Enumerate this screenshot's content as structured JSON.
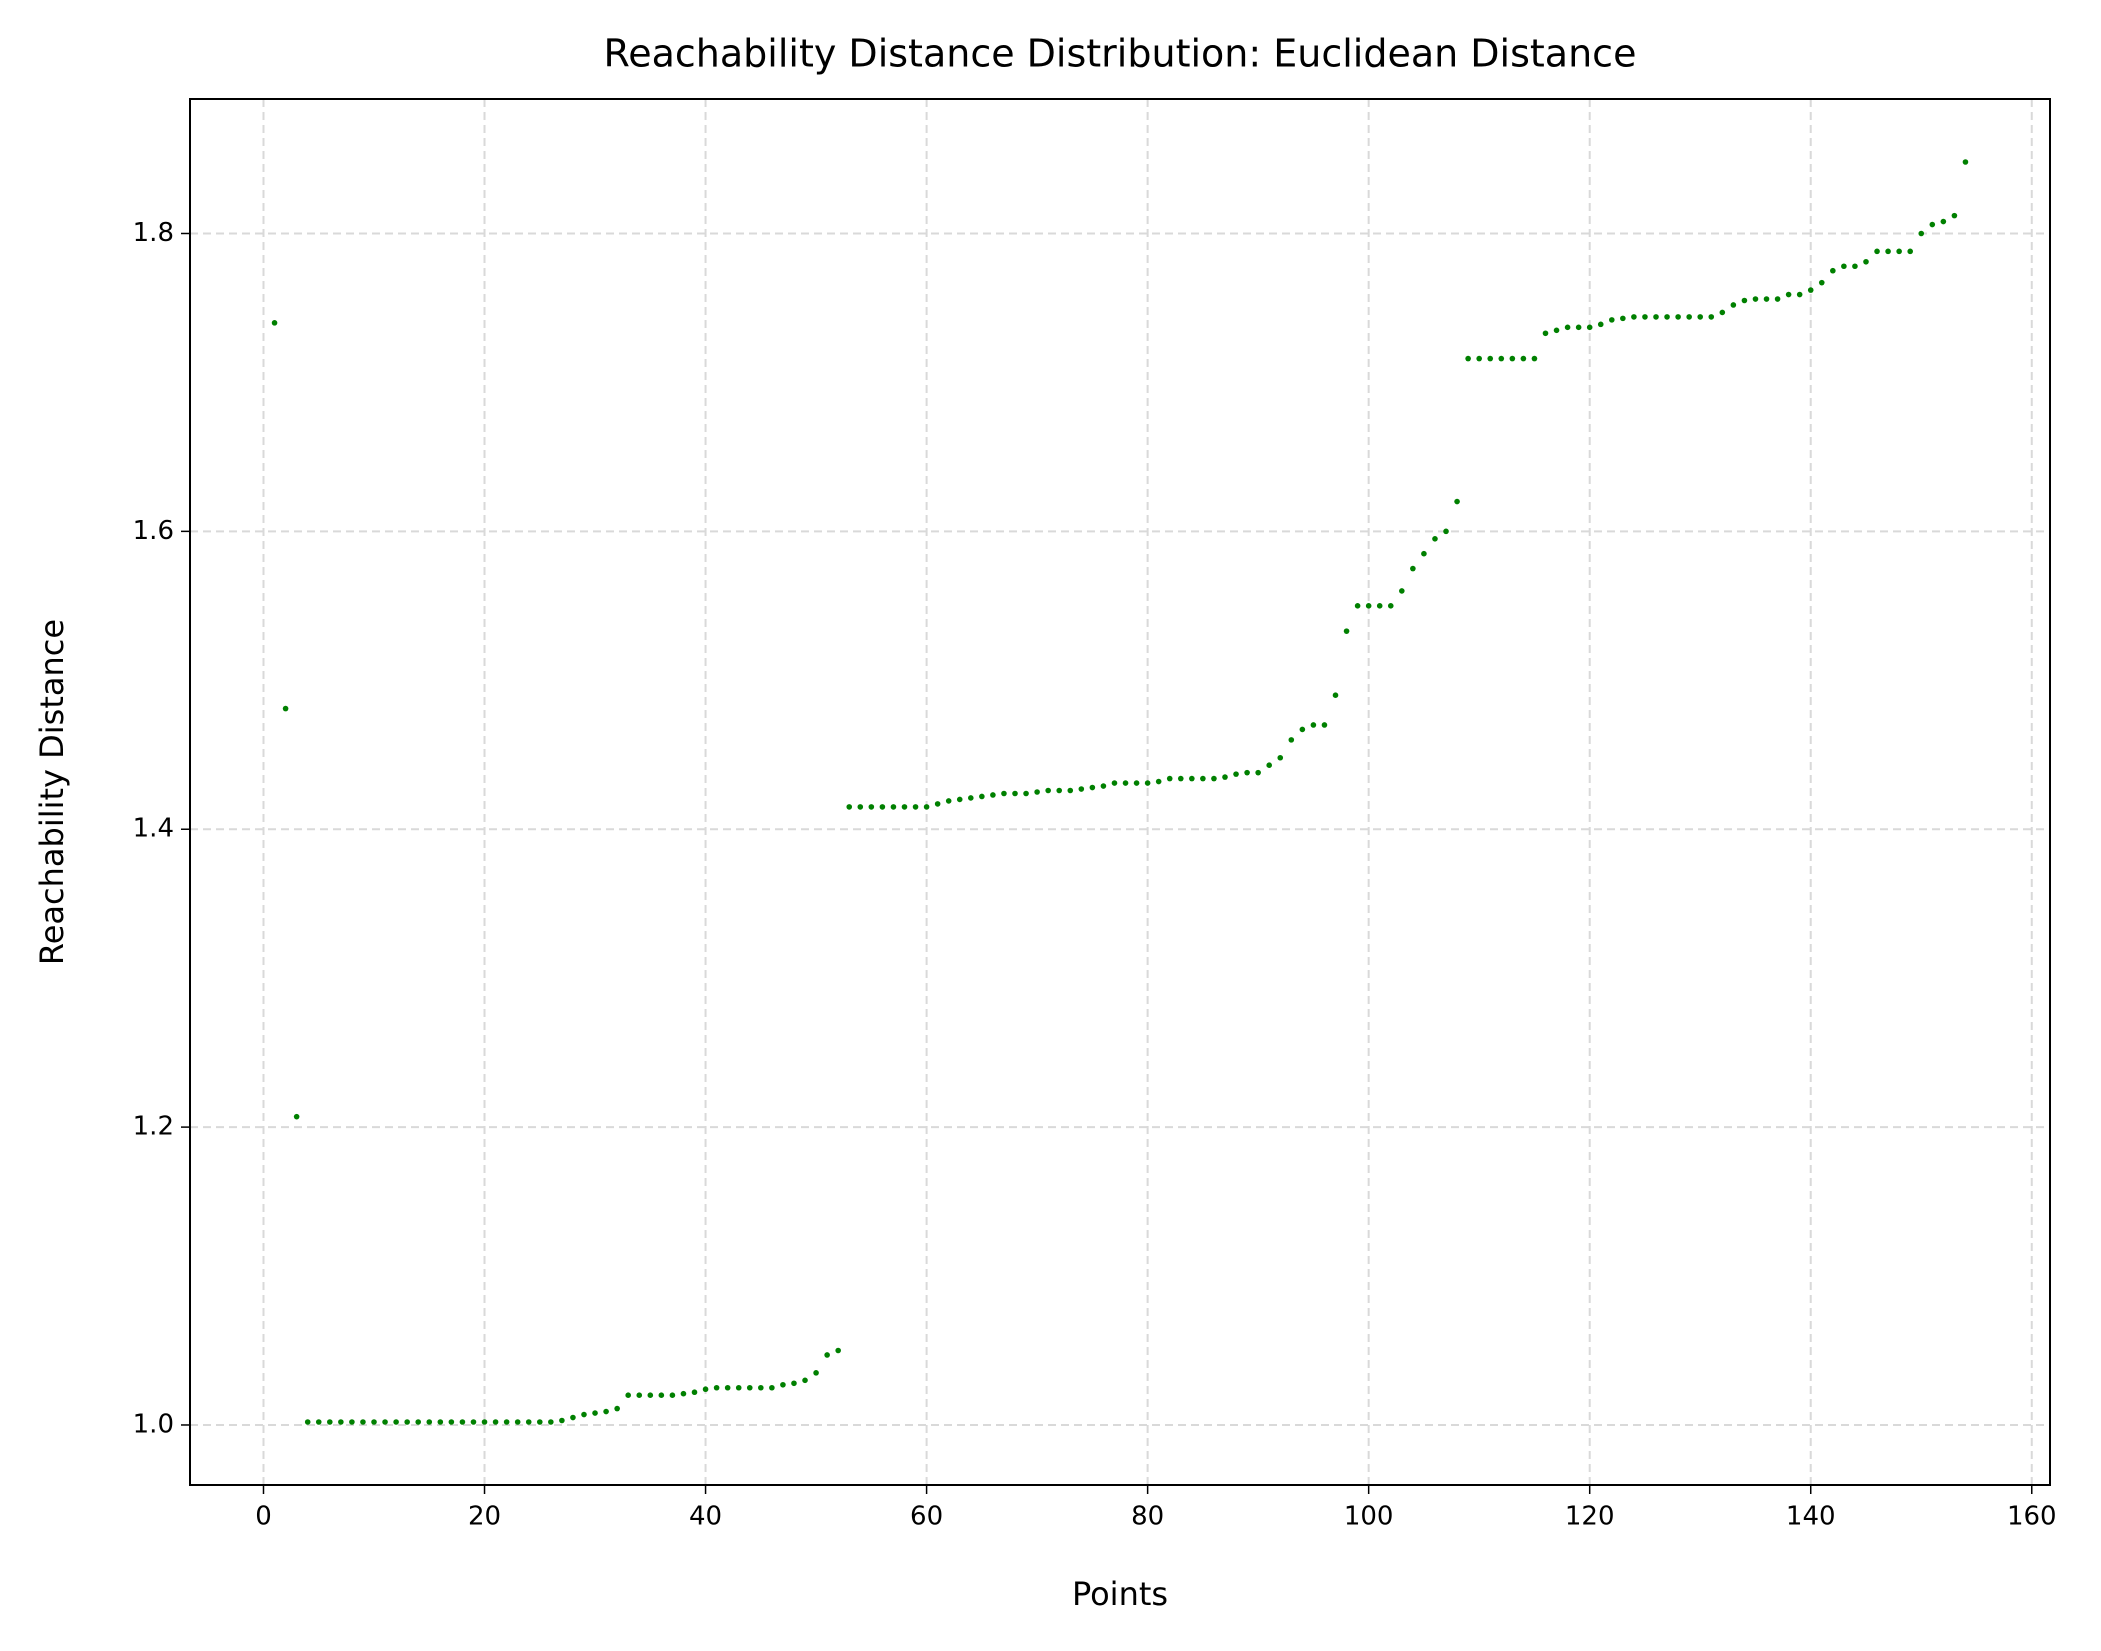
{
  "chart_data": {
    "type": "scatter",
    "title": "Reachability Distance Distribution: Euclidean Distance",
    "x_label": "Points",
    "y_label": "Reachability Distance",
    "color": "#008000",
    "grid": true,
    "xlim": [
      -6.65,
      161.65
    ],
    "ylim": [
      0.9597,
      1.8903
    ],
    "xticks": [
      0,
      20,
      40,
      60,
      80,
      100,
      120,
      140,
      160
    ],
    "yticks": [
      {
        "value": 1,
        "label": "1.0"
      },
      1.2,
      1.4,
      1.6,
      1.8
    ],
    "x": [
      1,
      2,
      3,
      4,
      5,
      6,
      7,
      8,
      9,
      10,
      11,
      12,
      13,
      14,
      15,
      16,
      17,
      18,
      19,
      20,
      21,
      22,
      23,
      24,
      25,
      26,
      27,
      28,
      29,
      30,
      31,
      32,
      33,
      34,
      35,
      36,
      37,
      38,
      39,
      40,
      41,
      42,
      43,
      44,
      45,
      46,
      47,
      48,
      49,
      50,
      51,
      52,
      53,
      54,
      55,
      56,
      57,
      58,
      59,
      60,
      61,
      62,
      63,
      64,
      65,
      66,
      67,
      68,
      69,
      70,
      71,
      72,
      73,
      74,
      75,
      76,
      77,
      78,
      79,
      80,
      81,
      82,
      83,
      84,
      85,
      86,
      87,
      88,
      89,
      90,
      91,
      92,
      93,
      94,
      95,
      96,
      97,
      98,
      99,
      100,
      101,
      102,
      103,
      104,
      105,
      106,
      107,
      108,
      109,
      110,
      111,
      112,
      113,
      114,
      115,
      116,
      117,
      118,
      119,
      120,
      121,
      122,
      123,
      124,
      125,
      126,
      127,
      128,
      129,
      130,
      131,
      132,
      133,
      134,
      135,
      136,
      137,
      138,
      139,
      140,
      141,
      142,
      143,
      144,
      145,
      146,
      147,
      148,
      149,
      150,
      151,
      152,
      153,
      154
    ],
    "values": [
      1.74,
      1.481,
      1.207,
      1.002,
      1.002,
      1.002,
      1.002,
      1.002,
      1.002,
      1.002,
      1.002,
      1.002,
      1.002,
      1.002,
      1.002,
      1.002,
      1.002,
      1.002,
      1.002,
      1.002,
      1.002,
      1.002,
      1.002,
      1.002,
      1.002,
      1.002,
      1.003,
      1.005,
      1.007,
      1.008,
      1.009,
      1.011,
      1.02,
      1.02,
      1.02,
      1.02,
      1.02,
      1.021,
      1.022,
      1.024,
      1.025,
      1.025,
      1.025,
      1.025,
      1.025,
      1.025,
      1.027,
      1.028,
      1.03,
      1.035,
      1.047,
      1.05,
      1.415,
      1.415,
      1.415,
      1.415,
      1.415,
      1.415,
      1.415,
      1.415,
      1.417,
      1.419,
      1.42,
      1.421,
      1.422,
      1.423,
      1.424,
      1.424,
      1.424,
      1.425,
      1.426,
      1.426,
      1.426,
      1.427,
      1.428,
      1.429,
      1.431,
      1.431,
      1.431,
      1.431,
      1.432,
      1.434,
      1.434,
      1.434,
      1.434,
      1.434,
      1.435,
      1.437,
      1.438,
      1.438,
      1.443,
      1.448,
      1.46,
      1.467,
      1.47,
      1.47,
      1.49,
      1.533,
      1.55,
      1.55,
      1.55,
      1.55,
      1.56,
      1.575,
      1.585,
      1.595,
      1.6,
      1.62,
      1.716,
      1.716,
      1.716,
      1.716,
      1.716,
      1.716,
      1.716,
      1.733,
      1.735,
      1.737,
      1.737,
      1.737,
      1.739,
      1.742,
      1.743,
      1.744,
      1.744,
      1.744,
      1.744,
      1.744,
      1.744,
      1.744,
      1.744,
      1.747,
      1.752,
      1.755,
      1.756,
      1.756,
      1.756,
      1.759,
      1.759,
      1.762,
      1.767,
      1.775,
      1.778,
      1.778,
      1.781,
      1.788,
      1.788,
      1.788,
      1.788,
      1.8,
      1.806,
      1.808,
      1.812,
      1.848
    ]
  }
}
